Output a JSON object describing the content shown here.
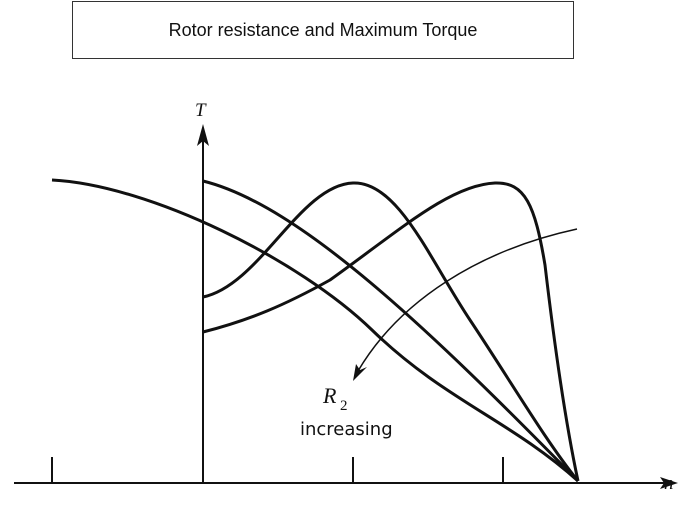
{
  "title": "Rotor resistance and Maximum Torque",
  "axes": {
    "y_label": "T",
    "x_label": "n"
  },
  "annotation": {
    "variable": "R",
    "subscript": "2",
    "text": "increasing"
  },
  "colors": {
    "ink": "#111111",
    "frame": "#333333",
    "background": "#ffffff"
  },
  "curve_names": [
    "torque-curve-1",
    "torque-curve-2",
    "torque-curve-3",
    "torque-curve-4"
  ]
}
